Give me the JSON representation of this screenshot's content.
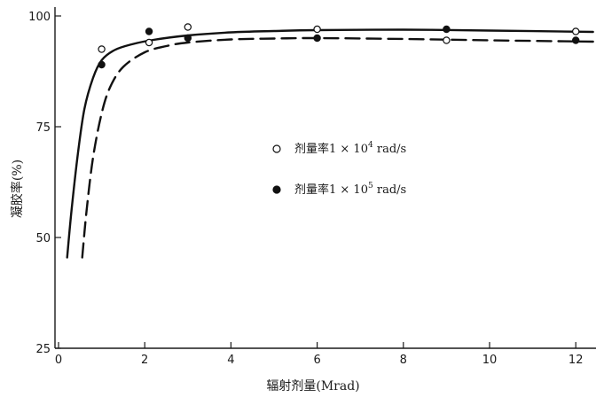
{
  "chart_data": {
    "type": "line",
    "title": "",
    "xlabel": "辐射剂量(Mrad)",
    "ylabel": "凝胶率(%)",
    "xlim": [
      0,
      12.4
    ],
    "ylim": [
      25,
      100
    ],
    "x_ticks": [
      0,
      2,
      4,
      6,
      8,
      10,
      12
    ],
    "x_tick_labels": [
      "0",
      "2",
      "4",
      "6",
      "8",
      "10",
      "12"
    ],
    "y_ticks": [
      25,
      50,
      75,
      100
    ],
    "y_tick_labels": [
      "25",
      "50",
      "75",
      "100"
    ],
    "grid": false,
    "legend_position": "center-right",
    "series": [
      {
        "name": "剂量率1×10⁴ rad/s",
        "legend_prefix": "剂量率1 × 10",
        "legend_exp": "4",
        "legend_suffix": " rad/s",
        "marker": "open-circle",
        "line_style": "solid",
        "points": [
          [
            1.0,
            92.5
          ],
          [
            2.1,
            94.0
          ],
          [
            3.0,
            97.5
          ],
          [
            6.0,
            97.0
          ],
          [
            9.0,
            94.5
          ],
          [
            12.0,
            96.5
          ]
        ],
        "curve": [
          [
            0.2,
            45.5
          ],
          [
            0.3,
            56
          ],
          [
            0.45,
            69
          ],
          [
            0.6,
            79
          ],
          [
            0.8,
            86
          ],
          [
            1.0,
            90
          ],
          [
            1.3,
            92.3
          ],
          [
            1.7,
            93.6
          ],
          [
            2.2,
            94.6
          ],
          [
            3.0,
            95.6
          ],
          [
            4.0,
            96.3
          ],
          [
            5.0,
            96.6
          ],
          [
            6.0,
            96.8
          ],
          [
            8.0,
            96.9
          ],
          [
            10.0,
            96.7
          ],
          [
            12.4,
            96.4
          ]
        ]
      },
      {
        "name": "剂量率1×10⁵ rad/s",
        "legend_prefix": "剂量率1 × 10",
        "legend_exp": "5",
        "legend_suffix": " rad/s",
        "marker": "filled-circle",
        "line_style": "dashed",
        "points": [
          [
            1.0,
            89.0
          ],
          [
            2.1,
            96.5
          ],
          [
            3.0,
            95.0
          ],
          [
            6.0,
            95.0
          ],
          [
            9.0,
            97.0
          ],
          [
            12.0,
            94.5
          ]
        ],
        "curve": [
          [
            0.55,
            45.5
          ],
          [
            0.65,
            56
          ],
          [
            0.8,
            68
          ],
          [
            1.0,
            78
          ],
          [
            1.2,
            84
          ],
          [
            1.5,
            88.5
          ],
          [
            2.0,
            91.8
          ],
          [
            2.5,
            93.2
          ],
          [
            3.0,
            94.0
          ],
          [
            4.0,
            94.7
          ],
          [
            5.0,
            94.9
          ],
          [
            6.0,
            95.0
          ],
          [
            8.0,
            94.8
          ],
          [
            10.0,
            94.5
          ],
          [
            12.4,
            94.2
          ]
        ]
      }
    ]
  }
}
